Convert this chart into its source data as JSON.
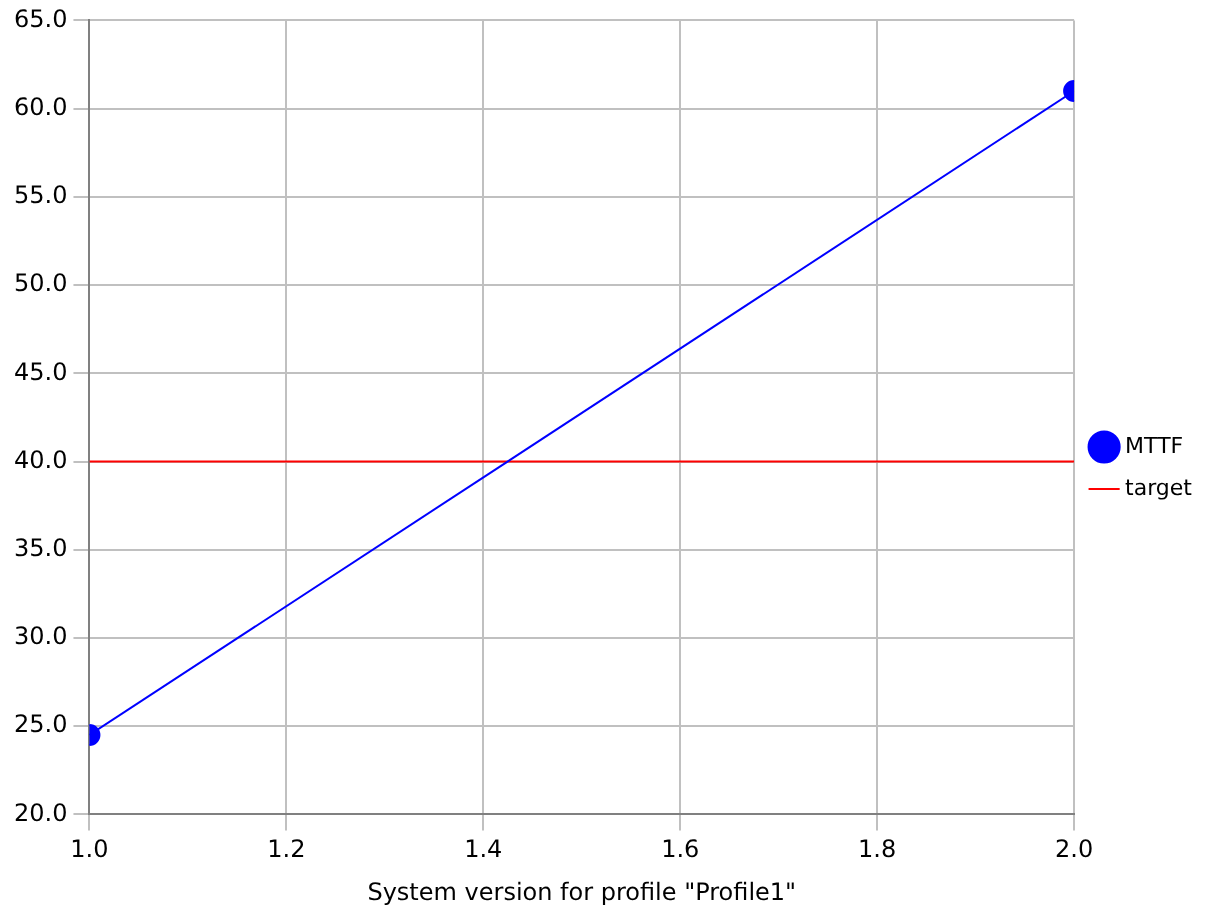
{
  "chart_data": {
    "type": "line",
    "xlabel": "System version for profile \"Profile1\"",
    "x": [
      1.0,
      2.0
    ],
    "series": [
      {
        "name": "MTTF",
        "color": "#0000ff",
        "values": [
          24.5,
          61.0
        ]
      }
    ],
    "ref_lines": [
      {
        "axis": "y",
        "value": 40,
        "label": "target",
        "color": "#ff0000"
      }
    ],
    "xlim": [
      1.0,
      2.0
    ],
    "xticks": [
      {
        "value": 1,
        "label": "1.0"
      },
      1.2,
      1.4,
      1.6,
      1.8,
      {
        "value": 2,
        "label": "2.0"
      }
    ],
    "ylim": [
      20,
      65
    ],
    "yticks": [
      {
        "value": 20,
        "label": "20.0"
      },
      {
        "value": 25,
        "label": "25.0"
      },
      {
        "value": 30,
        "label": "30.0"
      },
      {
        "value": 35,
        "label": "35.0"
      },
      {
        "value": 40,
        "label": "40.0"
      },
      {
        "value": 45,
        "label": "45.0"
      },
      {
        "value": 50,
        "label": "50.0"
      },
      {
        "value": 55,
        "label": "55.0"
      },
      {
        "value": 60,
        "label": "60.0"
      },
      {
        "value": 65,
        "label": "65.0"
      }
    ],
    "grid": true,
    "legend": "right",
    "marker": "circle",
    "line_style": "solid"
  }
}
